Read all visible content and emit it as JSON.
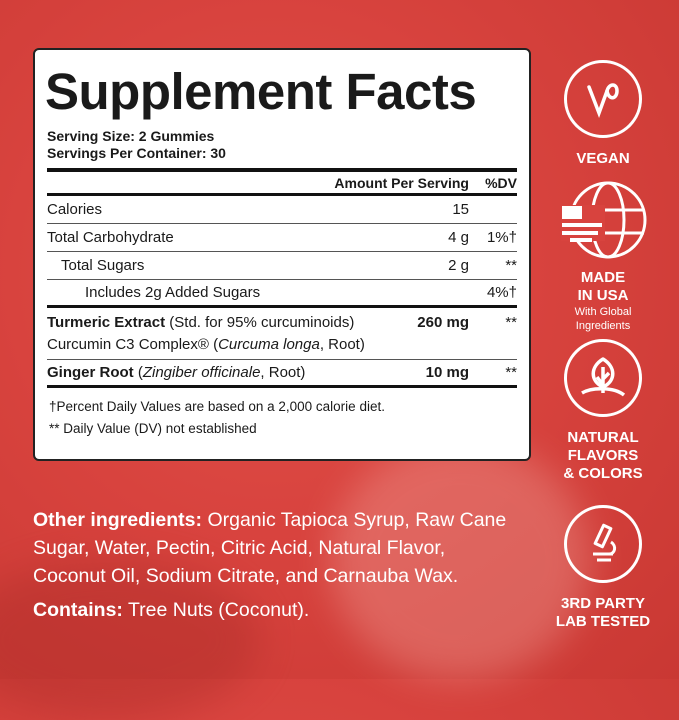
{
  "panel": {
    "title": "Supplement Facts",
    "serving_size": "Serving Size: 2 Gummies",
    "servings_per_container": "Servings Per Container: 30",
    "header": {
      "amount": "Amount Per Serving",
      "dv": "%DV"
    },
    "rows": [
      {
        "name": "Calories",
        "amount": "15",
        "dv": ""
      },
      {
        "name": "Total Carbohydrate",
        "amount": "4 g",
        "dv": "1%†"
      },
      {
        "name": "Total Sugars",
        "amount": "2 g",
        "dv": "**"
      },
      {
        "name": "Includes 2g Added Sugars",
        "amount": "",
        "dv": "4%†"
      }
    ],
    "turmeric": {
      "name": "Turmeric Extract",
      "desc": " (Std. for 95% curcuminoids)",
      "line2a": "Curcumin C3 Complex® (",
      "line2i": "Curcuma longa",
      "line2b": ", Root)",
      "amount": "260 mg",
      "dv": "**"
    },
    "ginger": {
      "name": "Ginger Root",
      "desc_a": " (",
      "desc_i": "Zingiber officinale",
      "desc_b": ", Root)",
      "amount": "10 mg",
      "dv": "**"
    },
    "footnotes": [
      "†Percent Daily Values are based on a 2,000 calorie diet.",
      "** Daily Value (DV) not established"
    ]
  },
  "ingredients": {
    "label": "Other ingredients:",
    "text": " Organic Tapioca Syrup, Raw Cane Sugar, Water, Pectin, Citric Acid, Natural Flavor, Coconut Oil, Sodium Citrate, and Carnauba Wax.",
    "contains_label": "Contains:",
    "contains": " Tree Nuts (Coconut)."
  },
  "badges": [
    {
      "icon": "vegan-icon",
      "title": "VEGAN"
    },
    {
      "icon": "usa-globe-icon",
      "title1": "MADE",
      "title2": "IN USA",
      "sub1": "With Global",
      "sub2": "Ingredients"
    },
    {
      "icon": "leaf-icon",
      "title1": "NATURAL",
      "title2": "FLAVORS",
      "title3": "& COLORS"
    },
    {
      "icon": "microscope-icon",
      "title1": "3RD PARTY",
      "title2": "LAB TESTED"
    }
  ],
  "colors": {
    "background": "#d8433e",
    "panel": "#ffffff",
    "text": "#1a1a1a"
  }
}
